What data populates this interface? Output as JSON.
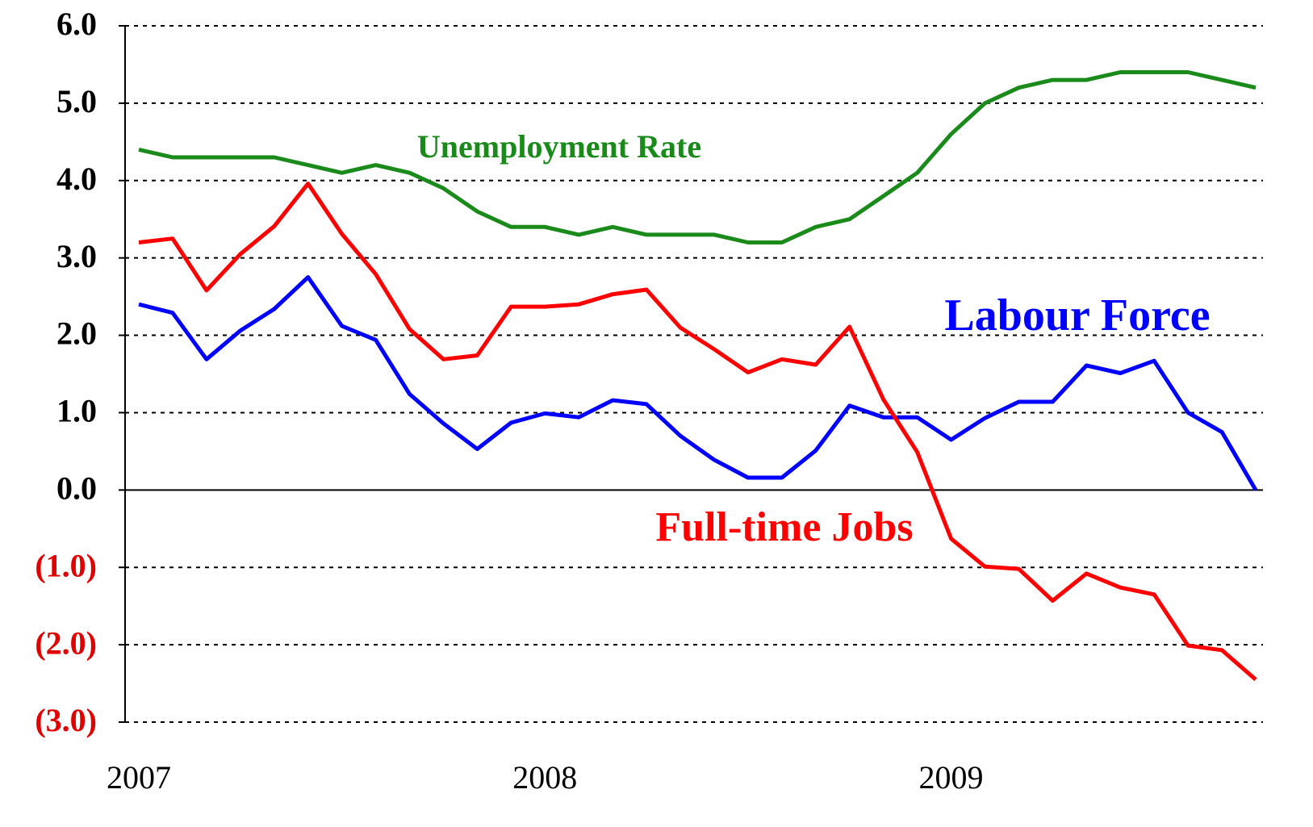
{
  "chart_data": {
    "type": "line",
    "categories": [
      "2007",
      null,
      null,
      null,
      null,
      null,
      null,
      null,
      null,
      null,
      null,
      null,
      "2008",
      null,
      null,
      null,
      null,
      null,
      null,
      null,
      null,
      null,
      null,
      null,
      "2009",
      null,
      null,
      null,
      null,
      null,
      null,
      null,
      null,
      null
    ],
    "series": [
      {
        "name": "Unemployment Rate",
        "color": "#1a8a1a",
        "values": [
          4.4,
          4.3,
          4.3,
          4.3,
          4.3,
          4.2,
          4.1,
          4.2,
          4.1,
          3.9,
          3.6,
          3.4,
          3.4,
          3.3,
          3.4,
          3.3,
          3.3,
          3.3,
          3.2,
          3.2,
          3.4,
          3.5,
          3.8,
          4.1,
          4.6,
          5.0,
          5.2,
          5.3,
          5.3,
          5.4,
          5.4,
          5.4,
          5.3,
          5.2
        ]
      },
      {
        "name": "Labour Force",
        "color": "#0000ff",
        "values": [
          2.4,
          2.29,
          1.69,
          2.06,
          2.34,
          2.75,
          2.12,
          1.94,
          1.24,
          0.86,
          0.53,
          0.87,
          0.99,
          0.94,
          1.16,
          1.11,
          0.7,
          0.39,
          0.16,
          0.16,
          0.51,
          1.09,
          0.94,
          0.94,
          0.65,
          0.93,
          1.14,
          1.14,
          1.61,
          1.51,
          1.67,
          1.0,
          0.75,
          0.0
        ]
      },
      {
        "name": "Full-time Jobs",
        "color": "#ff0000",
        "values": [
          3.2,
          3.25,
          2.58,
          3.05,
          3.41,
          3.96,
          3.31,
          2.79,
          2.08,
          1.69,
          1.74,
          2.37,
          2.37,
          2.4,
          2.53,
          2.59,
          2.1,
          1.82,
          1.52,
          1.69,
          1.62,
          2.11,
          1.17,
          0.49,
          -0.63,
          -0.99,
          -1.02,
          -1.43,
          -1.08,
          -1.26,
          -1.35,
          -2.01,
          -2.07,
          -2.45
        ]
      }
    ],
    "ylim": [
      -3,
      6
    ],
    "yticks": [
      {
        "value": -3,
        "label": "(3.0)"
      },
      {
        "value": -2,
        "label": "(2.0)"
      },
      {
        "value": -1,
        "label": "(1.0)"
      },
      {
        "value": 0,
        "label": "0.0"
      },
      {
        "value": 1,
        "label": "1.0"
      },
      {
        "value": 2,
        "label": "2.0"
      },
      {
        "value": 3,
        "label": "3.0"
      },
      {
        "value": 4,
        "label": "4.0"
      },
      {
        "value": 5,
        "label": "5.0"
      },
      {
        "value": 6,
        "label": "6.0"
      }
    ],
    "grid": true,
    "negative_tick_color": "#e00000"
  }
}
